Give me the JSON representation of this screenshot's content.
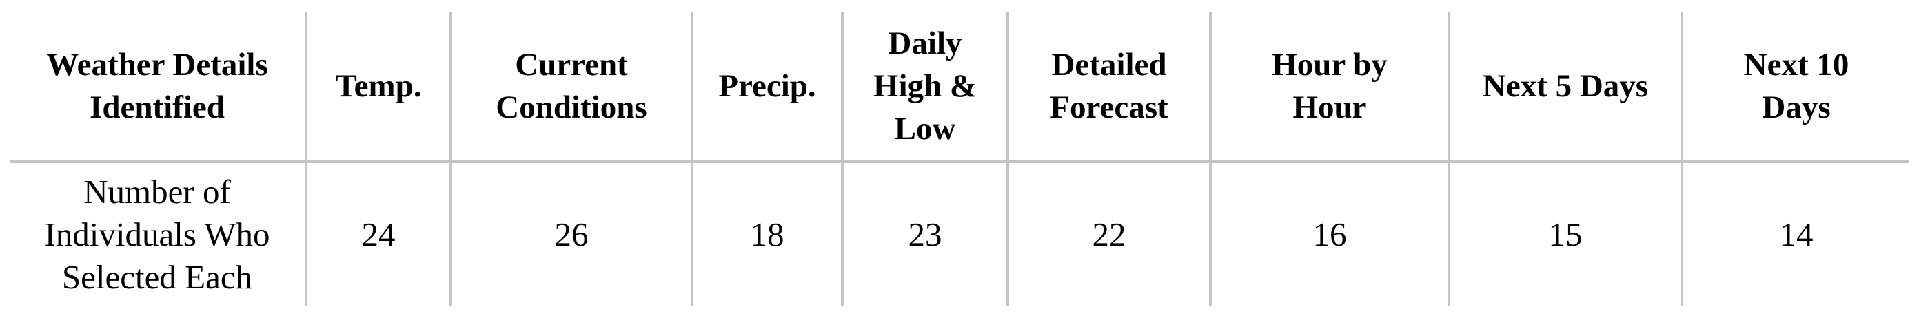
{
  "table": {
    "headers": [
      "Weather Details Identified",
      "Temp.",
      "Current Conditions",
      "Precip.",
      "Daily High & Low",
      "Detailed Forecast",
      "Hour by Hour",
      "Next 5 Days",
      "Next 10 Days"
    ],
    "rows": [
      {
        "label": "Number of Individuals Who Selected Each",
        "values": [
          "24",
          "26",
          "18",
          "23",
          "22",
          "16",
          "15",
          "14"
        ]
      }
    ]
  }
}
